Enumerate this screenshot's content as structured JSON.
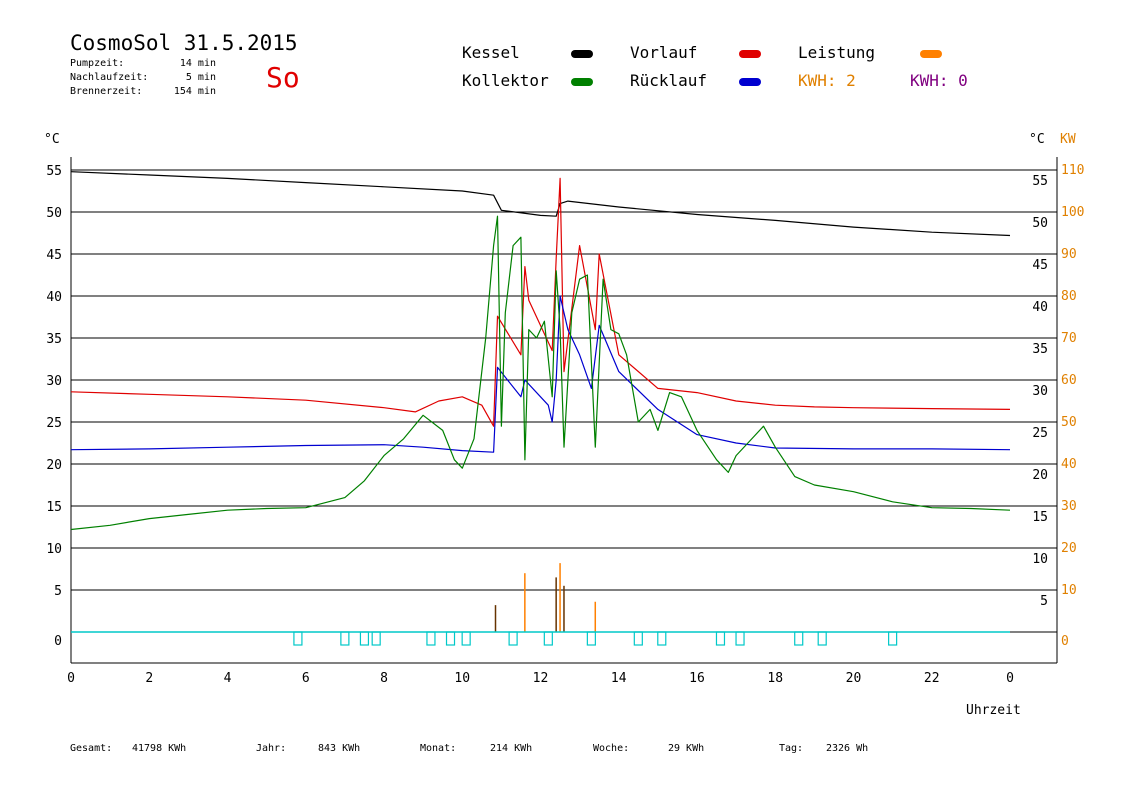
{
  "header": {
    "title": "CosmoSol 31.5.2015",
    "day": "So",
    "params": [
      {
        "label": "Pumpzeit:",
        "value": "14 min"
      },
      {
        "label": "Nachlaufzeit:",
        "value": "5 min"
      },
      {
        "label": "Brennerzeit:",
        "value": "154 min"
      }
    ]
  },
  "legend": {
    "kessel": "Kessel",
    "kollektor": "Kollektor",
    "vorlauf": "Vorlauf",
    "ruecklauf": "Rücklauf",
    "leistung": "Leistung",
    "kwh1": "KWH: 2",
    "kwh2": "KWH: 0"
  },
  "colors": {
    "kessel": "#000000",
    "kollektor": "#008000",
    "vorlauf": "#e00000",
    "ruecklauf": "#0000d0",
    "leistung": "#ff8000",
    "kwh1": "#e08000",
    "kwh2": "#800080",
    "pump": "#00c8c8"
  },
  "chart_data": {
    "type": "line",
    "xlabel": "Uhrzeit",
    "ylabel_left": "°C",
    "ylabel_right": "°C",
    "ylabel_right2": "KW",
    "xlim": [
      0,
      24
    ],
    "ylim": [
      0,
      55
    ],
    "y2lim": [
      0,
      110
    ],
    "grid": true,
    "x_ticks": [
      "0",
      "2",
      "4",
      "6",
      "8",
      "10",
      "12",
      "14",
      "16",
      "18",
      "20",
      "22",
      "0"
    ],
    "y_ticks_left": [
      "0",
      "5",
      "10",
      "15",
      "20",
      "25",
      "30",
      "35",
      "40",
      "45",
      "50",
      "55"
    ],
    "y_ticks_right": [
      "5",
      "10",
      "15",
      "20",
      "25",
      "30",
      "35",
      "40",
      "45",
      "50",
      "55"
    ],
    "y2_ticks": [
      "0",
      "10",
      "20",
      "30",
      "40",
      "50",
      "60",
      "70",
      "80",
      "90",
      "100",
      "110"
    ],
    "series": [
      {
        "name": "Kessel",
        "key": "kessel",
        "x": [
          0,
          2,
          4,
          6,
          8,
          10,
          10.8,
          11,
          12,
          12.4,
          12.5,
          12.7,
          14,
          16,
          18,
          20,
          22,
          24
        ],
        "y": [
          54.8,
          54.4,
          54,
          53.5,
          53,
          52.5,
          52,
          50.2,
          49.6,
          49.5,
          51,
          51.3,
          50.6,
          49.7,
          49,
          48.2,
          47.6,
          47.2
        ]
      },
      {
        "name": "Vorlauf",
        "key": "vorlauf",
        "x": [
          0,
          2,
          4,
          6,
          8,
          8.8,
          9.4,
          10,
          10.5,
          10.8,
          10.9,
          11.5,
          11.6,
          11.7,
          12.3,
          12.4,
          12.5,
          12.6,
          13.0,
          13.4,
          13.5,
          14,
          15,
          16,
          17,
          18,
          19,
          20,
          22,
          24
        ],
        "y": [
          28.6,
          28.3,
          28,
          27.6,
          26.7,
          26.2,
          27.5,
          28,
          27,
          24.5,
          37.6,
          33,
          43.5,
          39.5,
          33.5,
          44.5,
          54,
          31,
          46,
          36,
          45,
          33,
          29,
          28.5,
          27.5,
          27,
          26.8,
          26.7,
          26.6,
          26.5
        ]
      },
      {
        "name": "Rücklauf",
        "key": "ruecklauf",
        "x": [
          0,
          2,
          4,
          6,
          8,
          9,
          10,
          10.8,
          10.9,
          11.5,
          11.6,
          12.2,
          12.3,
          12.4,
          12.5,
          12.7,
          13.0,
          13.3,
          13.5,
          14,
          15,
          16,
          17,
          18,
          20,
          22,
          24
        ],
        "y": [
          21.7,
          21.8,
          22,
          22.2,
          22.3,
          22,
          21.6,
          21.4,
          31.5,
          28,
          30,
          27,
          25,
          30,
          40,
          36,
          33,
          29,
          36.5,
          31,
          26.5,
          23.5,
          22.5,
          21.9,
          21.8,
          21.8,
          21.7
        ]
      },
      {
        "name": "Kollektor",
        "key": "kollektor",
        "x": [
          0,
          1,
          2,
          3,
          4,
          5,
          6,
          7,
          7.5,
          8,
          8.5,
          9,
          9.5,
          9.8,
          10,
          10.3,
          10.6,
          10.8,
          10.9,
          11.0,
          11.1,
          11.3,
          11.5,
          11.6,
          11.7,
          11.9,
          12.1,
          12.3,
          12.4,
          12.5,
          12.6,
          12.8,
          13.0,
          13.2,
          13.4,
          13.6,
          13.8,
          14,
          14.2,
          14.5,
          14.8,
          15,
          15.3,
          15.6,
          16,
          16.5,
          16.8,
          17,
          17.3,
          17.7,
          18,
          18.5,
          19,
          20,
          21,
          22,
          23,
          24
        ],
        "y": [
          12.2,
          12.7,
          13.5,
          14,
          14.5,
          14.7,
          14.8,
          16,
          18,
          21,
          23,
          25.8,
          24,
          20.5,
          19.5,
          23,
          35,
          46,
          49.5,
          24.5,
          38,
          46,
          47,
          20.5,
          36,
          35,
          37,
          28,
          43,
          36,
          22,
          38,
          42,
          42.5,
          22,
          42,
          36,
          35.5,
          33,
          25,
          26.5,
          24,
          28.5,
          28,
          24,
          20.5,
          19,
          21,
          22.5,
          24.5,
          22,
          18.5,
          17.5,
          16.7,
          15.5,
          14.8,
          14.7,
          14.5
        ]
      }
    ],
    "bottom_spikes": {
      "x": [
        10.85,
        11.6,
        12.4,
        12.5,
        12.6,
        13.4
      ],
      "y": [
        3.2,
        7,
        6.5,
        8.2,
        5.5,
        3.6
      ]
    },
    "pump_pulses_x": [
      5.8,
      7.0,
      7.5,
      7.8,
      9.2,
      9.7,
      10.1,
      11.3,
      12.2,
      13.3,
      14.5,
      15.1,
      16.6,
      17.1,
      18.6,
      19.2,
      21.0
    ]
  },
  "footer": [
    {
      "label": "Gesamt:",
      "value": "41798 KWh"
    },
    {
      "label": "Jahr:",
      "value": "843 KWh"
    },
    {
      "label": "Monat:",
      "value": "214 KWh"
    },
    {
      "label": "Woche:",
      "value": "29 KWh"
    },
    {
      "label": "Tag:",
      "value": "2326 Wh"
    }
  ]
}
